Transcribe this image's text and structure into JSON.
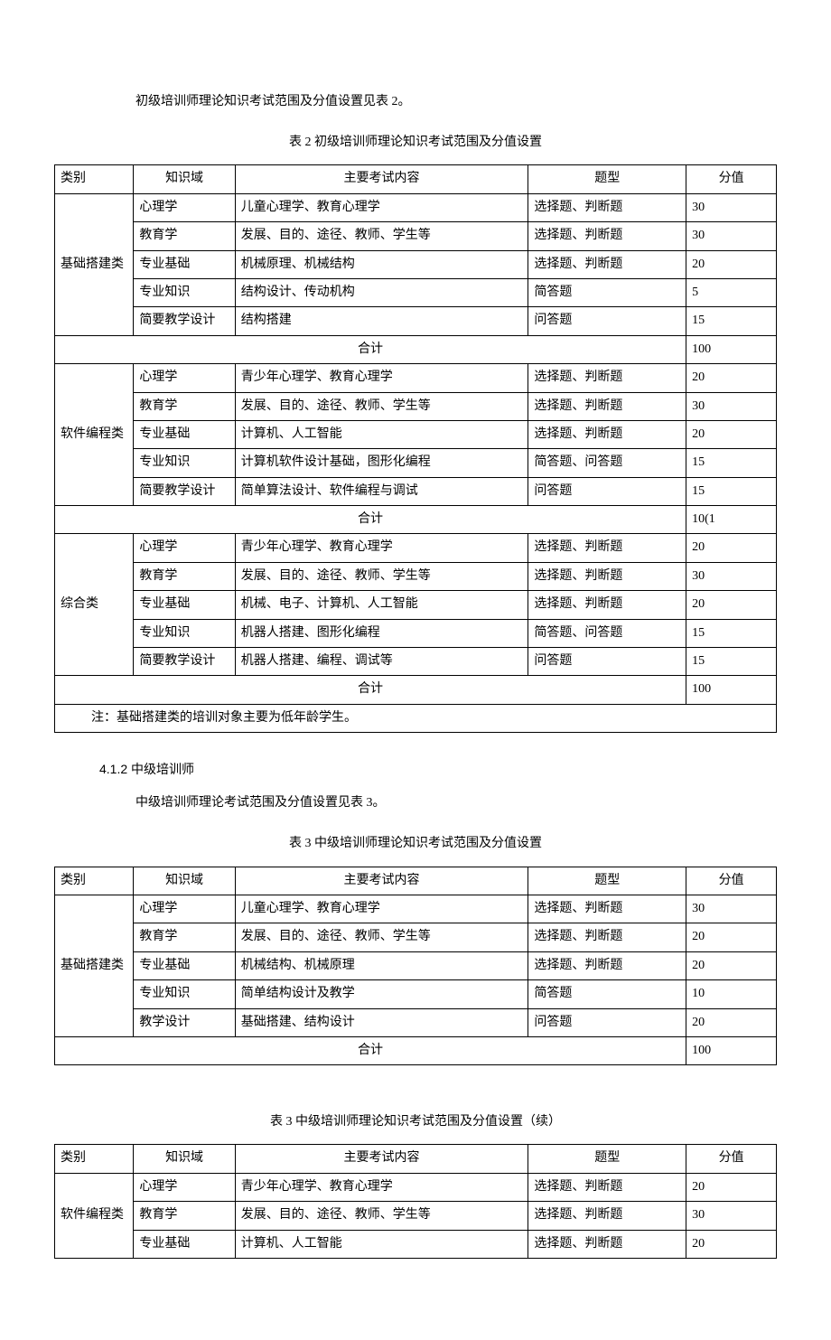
{
  "intro1": "初级培训师理论知识考试范围及分值设置见表 2。",
  "table2_title": "表 2 初级培训师理论知识考试范围及分值设置",
  "headers": {
    "category": "类别",
    "domain": "知识域",
    "content": "主要考试内容",
    "type": "题型",
    "score": "分值"
  },
  "total_label": "合计",
  "note": "注：基础搭建类的培训对象主要为低年龄学生。",
  "table2": {
    "groups": [
      {
        "category": "基础搭建类",
        "rows": [
          {
            "domain": "心理学",
            "content": "儿童心理学、教育心理学",
            "type": "选择题、判断题",
            "score": "30"
          },
          {
            "domain": "教育学",
            "content": "发展、目的、途径、教师、学生等",
            "type": "选择题、判断题",
            "score": "30"
          },
          {
            "domain": "专业基础",
            "content": "机械原理、机械结构",
            "type": "选择题、判断题",
            "score": "20"
          },
          {
            "domain": "专业知识",
            "content": "结构设计、传动机构",
            "type": "简答题",
            "score": "5"
          },
          {
            "domain": "简要教学设计",
            "content": "结构搭建",
            "type": "问答题",
            "score": "15"
          }
        ],
        "total": "100"
      },
      {
        "category": "软件编程类",
        "rows": [
          {
            "domain": "心理学",
            "content": "青少年心理学、教育心理学",
            "type": "选择题、判断题",
            "score": "20"
          },
          {
            "domain": "教育学",
            "content": "发展、目的、途径、教师、学生等",
            "type": "选择题、判断题",
            "score": "30"
          },
          {
            "domain": "专业基础",
            "content": "计算机、人工智能",
            "type": "选择题、判断题",
            "score": "20"
          },
          {
            "domain": "专业知识",
            "content": "计算机软件设计基础，图形化编程",
            "type": "简答题、问答题",
            "score": "15"
          },
          {
            "domain": "简要教学设计",
            "content": "简单算法设计、软件编程与调试",
            "type": "问答题",
            "score": "15"
          }
        ],
        "total": "10(1"
      },
      {
        "category": "综合类",
        "rows": [
          {
            "domain": "心理学",
            "content": "青少年心理学、教育心理学",
            "type": "选择题、判断题",
            "score": "20"
          },
          {
            "domain": "教育学",
            "content": "发展、目的、途径、教师、学生等",
            "type": "选择题、判断题",
            "score": "30"
          },
          {
            "domain": "专业基础",
            "content": "机械、电子、计算机、人工智能",
            "type": "选择题、判断题",
            "score": "20"
          },
          {
            "domain": "专业知识",
            "content": "机器人搭建、图形化编程",
            "type": "简答题、问答题",
            "score": "15"
          },
          {
            "domain": "简要教学设计",
            "content": "机器人搭建、编程、调试等",
            "type": "问答题",
            "score": "15"
          }
        ],
        "total": "100"
      }
    ]
  },
  "section_4_1_2": "4.1.2 中级培训师",
  "intro2": "中级培训师理论考试范围及分值设置见表 3。",
  "table3_title": "表 3 中级培训师理论知识考试范围及分值设置",
  "table3": {
    "groups": [
      {
        "category": "基础搭建类",
        "rows": [
          {
            "domain": "心理学",
            "content": "儿童心理学、教育心理学",
            "type": "选择题、判断题",
            "score": "30"
          },
          {
            "domain": "教育学",
            "content": "发展、目的、途径、教师、学生等",
            "type": "选择题、判断题",
            "score": "20"
          },
          {
            "domain": "专业基础",
            "content": "机械结构、机械原理",
            "type": "选择题、判断题",
            "score": "20"
          },
          {
            "domain": "专业知识",
            "content": "简单结构设计及教学",
            "type": "简答题",
            "score": "10"
          },
          {
            "domain": "教学设计",
            "content": "基础搭建、结构设计",
            "type": "问答题",
            "score": "20"
          }
        ],
        "total": "100"
      }
    ]
  },
  "table3_cont_title": "表 3 中级培训师理论知识考试范围及分值设置（续）",
  "table3_cont": {
    "groups": [
      {
        "category": "软件编程类",
        "rows": [
          {
            "domain": "心理学",
            "content": "青少年心理学、教育心理学",
            "type": "选择题、判断题",
            "score": "20"
          },
          {
            "domain": "教育学",
            "content": "发展、目的、途径、教师、学生等",
            "type": "选择题、判断题",
            "score": "30"
          },
          {
            "domain": "专业基础",
            "content": "计算机、人工智能",
            "type": "选择题、判断题",
            "score": "20"
          }
        ]
      }
    ]
  }
}
